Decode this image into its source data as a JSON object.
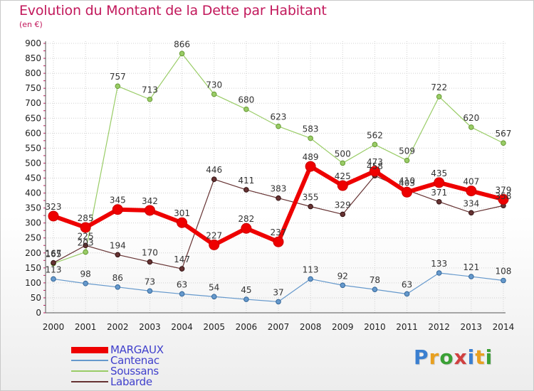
{
  "title": "Evolution du Montant de la Dette par Habitant",
  "subtitle": "(en €)",
  "logo_text": "Proxiti",
  "colors": {
    "title": "#c2185b",
    "grid": "#d0d0d0",
    "axis": "#555555",
    "MARGAUX": "#ee0000",
    "Cantenac": "#6699cc",
    "Soussans": "#99cc66",
    "Labarde": "#663333"
  },
  "chart_data": {
    "type": "line",
    "title": "Evolution du Montant de la Dette par Habitant",
    "subtitle": "(en €)",
    "xlabel": "",
    "ylabel": "",
    "categories": [
      "2000",
      "2001",
      "2002",
      "2003",
      "2004",
      "2005",
      "2006",
      "2007",
      "2008",
      "2009",
      "2010",
      "2011",
      "2012",
      "2013",
      "2014"
    ],
    "ylim": [
      0,
      900
    ],
    "yticks": [
      0,
      50,
      100,
      150,
      200,
      250,
      300,
      350,
      400,
      450,
      500,
      550,
      600,
      650,
      700,
      750,
      800,
      850,
      900
    ],
    "grid": true,
    "legend_position": "bottom-left",
    "series": [
      {
        "name": "MARGAUX",
        "color": "#ee0000",
        "values": [
          323,
          285,
          345,
          342,
          301,
          227,
          282,
          237,
          489,
          425,
          473,
          403,
          435,
          407,
          379
        ]
      },
      {
        "name": "Cantenac",
        "color": "#6699cc",
        "values": [
          113,
          98,
          86,
          73,
          63,
          54,
          45,
          37,
          113,
          92,
          78,
          63,
          133,
          121,
          108
        ]
      },
      {
        "name": "Soussans",
        "color": "#99cc66",
        "values": [
          165,
          203,
          757,
          713,
          866,
          730,
          680,
          623,
          583,
          500,
          562,
          509,
          722,
          620,
          567
        ]
      },
      {
        "name": "Labarde",
        "color": "#663333",
        "values": [
          167,
          225,
          194,
          170,
          147,
          446,
          411,
          383,
          355,
          329,
          458,
          410,
          371,
          334,
          358
        ]
      }
    ]
  }
}
